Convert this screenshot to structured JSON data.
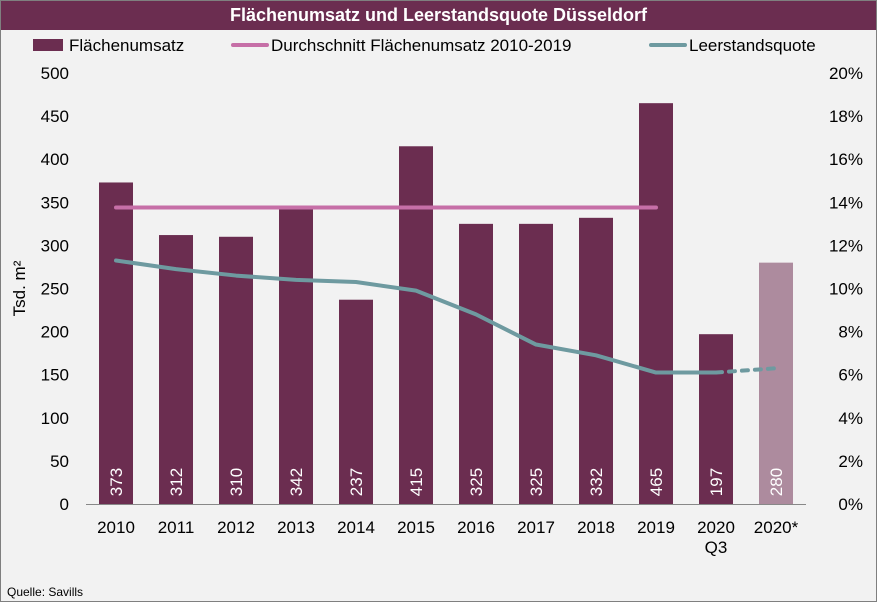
{
  "source_note": "Quelle: Savills",
  "chart_data": {
    "type": "bar",
    "title": "Flächenumsatz und Leerstandsquote Düsseldorf",
    "ylabel": "Tsd. m²",
    "ylabel_right": "",
    "categories": [
      [
        "2010"
      ],
      [
        "2011"
      ],
      [
        "2012"
      ],
      [
        "2013"
      ],
      [
        "2014"
      ],
      [
        "2015"
      ],
      [
        "2016"
      ],
      [
        "2017"
      ],
      [
        "2018"
      ],
      [
        "2019"
      ],
      [
        "2020",
        "Q3"
      ],
      [
        "2020*"
      ]
    ],
    "ylim": [
      0,
      500
    ],
    "y_ticks": [
      "0",
      "50",
      "100",
      "150",
      "200",
      "250",
      "300",
      "350",
      "400",
      "450",
      "500"
    ],
    "ylim_right": [
      0,
      20
    ],
    "y_ticks_right": [
      "0%",
      "2%",
      "4%",
      "6%",
      "8%",
      "10%",
      "12%",
      "14%",
      "16%",
      "18%",
      "20%"
    ],
    "grid": false,
    "legend_position": "top",
    "colors": {
      "bars": "#6b2d50",
      "bars_forecast": "#ad8b9e",
      "average": "#c66fa7",
      "vacancy": "#6e9aa0",
      "title_bg": "#6b2d50",
      "background": "#f2f2f2"
    },
    "series": [
      {
        "name": "Flächenumsatz",
        "type": "bar",
        "axis": "left",
        "values": [
          373,
          312,
          310,
          342,
          237,
          415,
          325,
          325,
          332,
          465,
          197,
          280
        ],
        "labels": [
          "373",
          "312",
          "310",
          "342",
          "237",
          "415",
          "325",
          "325",
          "332",
          "465",
          "197",
          "280"
        ]
      },
      {
        "name": "Durchschnitt Flächenumsatz 2010-2019",
        "type": "line",
        "axis": "left",
        "values": [
          344,
          344,
          344,
          344,
          344,
          344,
          344,
          344,
          344,
          344,
          null,
          null
        ]
      },
      {
        "name": "Leerstandsquote",
        "type": "line",
        "axis": "right",
        "values": [
          11.3,
          10.9,
          10.6,
          10.4,
          10.3,
          9.9,
          8.8,
          7.4,
          6.9,
          6.1,
          6.1,
          6.3
        ],
        "dashed_from_index": 10
      }
    ]
  }
}
